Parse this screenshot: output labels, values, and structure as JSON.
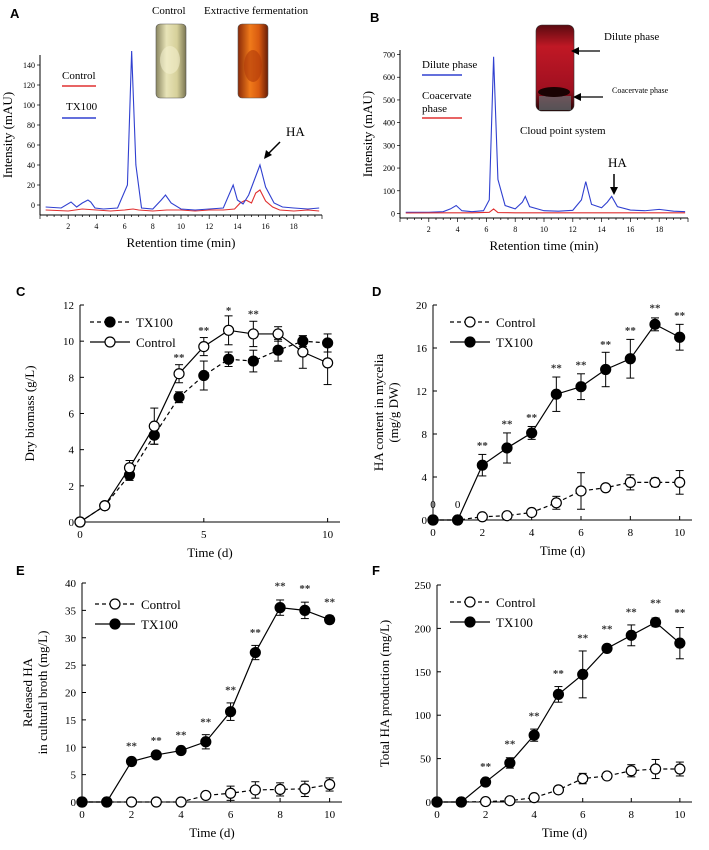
{
  "panels": {
    "A": {
      "letter": "A",
      "chart_data": {
        "type": "line",
        "xlabel": "Retention time (min)",
        "ylabel": "Intensity (mAU)",
        "xlim": [
          0,
          20
        ],
        "ylim": [
          -10,
          150
        ],
        "xticks": [
          2,
          4,
          6,
          8,
          10,
          12,
          14,
          16,
          18
        ],
        "yticks": [
          0,
          20,
          40,
          60,
          80,
          100,
          120,
          140
        ],
        "legend": [
          "Control",
          "TX100"
        ],
        "annotations": [
          "HA"
        ],
        "photo_labels": [
          "Control",
          "Extractive fermentation"
        ],
        "series": [
          {
            "name": "Control",
            "color": "#e03030",
            "x": [
              0.4,
              2,
              3,
              4,
              5,
              6,
              6.6,
              7,
              8,
              9,
              10,
              11,
              12,
              13,
              13.8,
              14.2,
              14.6,
              15.0,
              15.3,
              15.6,
              16,
              16.5,
              17,
              18,
              19,
              19.8
            ],
            "y": [
              -5,
              -6,
              -4,
              -5,
              -6,
              -5,
              -4,
              -5,
              -6,
              -5,
              -5,
              -6,
              -5,
              -5,
              -4,
              2,
              5,
              2,
              12,
              15,
              4,
              -2,
              -5,
              -6,
              -5,
              -6
            ]
          },
          {
            "name": "TX100",
            "color": "#3040d0",
            "x": [
              0.4,
              1.5,
              2.2,
              2.6,
              3.0,
              3.4,
              3.6,
              3.9,
              4.5,
              5.5,
              6.2,
              6.5,
              6.8,
              7.2,
              8,
              8.6,
              8.9,
              9.3,
              10,
              11,
              12,
              13,
              13.7,
              14.0,
              14.4,
              14.8,
              15.2,
              15.6,
              16.0,
              16.6,
              17.2,
              18,
              19,
              19.8
            ],
            "y": [
              -2,
              -3,
              3,
              -2,
              2,
              5,
              3,
              -3,
              -4,
              -3,
              20,
              154,
              40,
              -3,
              -4,
              5,
              10,
              2,
              -4,
              -5,
              -4,
              -3,
              20,
              5,
              1,
              10,
              25,
              40,
              18,
              2,
              -2,
              -3,
              -4,
              -3
            ]
          }
        ]
      }
    },
    "B": {
      "letter": "B",
      "chart_data": {
        "type": "line",
        "xlabel": "Retention time (min)",
        "ylabel": "Intensity (mAU)",
        "xlim": [
          0,
          20
        ],
        "ylim": [
          -20,
          720
        ],
        "xticks": [
          2,
          4,
          6,
          8,
          10,
          12,
          14,
          16,
          18
        ],
        "yticks": [
          0,
          100,
          200,
          300,
          400,
          500,
          600,
          700
        ],
        "legend": [
          "Dilute phase",
          "Coacervate phase"
        ],
        "annotations": [
          "HA",
          "Cloud point system",
          "Dilute phase",
          "Coacervate phase"
        ],
        "series": [
          {
            "name": "Dilute phase",
            "color": "#3040d0",
            "x": [
              0.4,
              2,
              3,
              3.5,
              3.9,
              4.3,
              5,
              5.8,
              6.2,
              6.5,
              6.8,
              7.3,
              8,
              8.5,
              8.7,
              9.0,
              10,
              11,
              12,
              12.6,
              12.9,
              13.3,
              14,
              14.4,
              14.7,
              15.1,
              16,
              17,
              18,
              19,
              19.8
            ],
            "y": [
              5,
              5,
              8,
              20,
              35,
              12,
              8,
              12,
              60,
              690,
              150,
              35,
              20,
              50,
              75,
              30,
              12,
              10,
              14,
              60,
              140,
              40,
              25,
              50,
              75,
              30,
              15,
              12,
              18,
              10,
              8
            ]
          },
          {
            "name": "Coacervate phase",
            "color": "#e03030",
            "x": [
              0.4,
              3,
              5,
              6.2,
              6.5,
              6.8,
              8,
              10,
              12,
              14,
              16,
              18,
              19.8
            ],
            "y": [
              2,
              3,
              3,
              5,
              20,
              4,
              3,
              3,
              3,
              3,
              3,
              3,
              3
            ]
          }
        ]
      }
    },
    "C": {
      "letter": "C",
      "chart_data": {
        "type": "line",
        "xlabel": "Time (d)",
        "ylabel": "Dry biomass (g/L)",
        "xlim": [
          0,
          10.5
        ],
        "ylim": [
          0,
          12
        ],
        "xticks": [
          0,
          5,
          10
        ],
        "yticks": [
          0,
          2,
          4,
          6,
          8,
          10,
          12
        ],
        "legend_order": [
          "TX100",
          "Control"
        ],
        "series": [
          {
            "name": "TX100",
            "marker": "filled",
            "line": "dashed",
            "x": [
              0,
              1,
              2,
              3,
              4,
              5,
              6,
              7,
              8,
              9,
              10
            ],
            "y": [
              0,
              0.9,
              2.6,
              4.8,
              6.9,
              8.1,
              9.0,
              8.9,
              9.5,
              10.0,
              9.9
            ],
            "err": [
              0,
              0.1,
              0.3,
              0.5,
              0.3,
              0.8,
              0.4,
              0.6,
              0.6,
              0.3,
              0.5
            ]
          },
          {
            "name": "Control",
            "marker": "open",
            "line": "solid",
            "x": [
              0,
              1,
              2,
              3,
              4,
              5,
              6,
              7,
              8,
              9,
              10
            ],
            "y": [
              0,
              0.9,
              3.0,
              5.3,
              8.2,
              9.7,
              10.6,
              10.4,
              10.4,
              9.4,
              8.8
            ],
            "err": [
              0,
              0.1,
              0.4,
              1.0,
              0.5,
              0.5,
              0.8,
              0.7,
              0.4,
              0.9,
              1.2
            ]
          }
        ],
        "significance": [
          {
            "x": 4,
            "y": 8.9,
            "label": "**"
          },
          {
            "x": 5,
            "y": 10.4,
            "label": "**"
          },
          {
            "x": 6,
            "y": 11.5,
            "label": "*"
          },
          {
            "x": 7,
            "y": 11.3,
            "label": "**"
          }
        ]
      }
    },
    "D": {
      "letter": "D",
      "chart_data": {
        "type": "line",
        "xlabel": "Time (d)",
        "ylabel": "HA content in mycelia (mg/g DW)",
        "ylabel_lines": [
          "HA content in mycelia",
          "(mg/g DW)"
        ],
        "xlim": [
          0,
          10.5
        ],
        "ylim": [
          0,
          20
        ],
        "xticks": [
          0,
          2,
          4,
          6,
          8,
          10
        ],
        "yticks": [
          0,
          4,
          8,
          12,
          16,
          20
        ],
        "legend_order": [
          "Control",
          "TX100"
        ],
        "series": [
          {
            "name": "Control",
            "marker": "open",
            "line": "dashed",
            "x": [
              0,
              1,
              2,
              3,
              4,
              5,
              6,
              7,
              8,
              9,
              10
            ],
            "y": [
              0,
              0,
              0.3,
              0.4,
              0.7,
              1.6,
              2.7,
              3.0,
              3.5,
              3.5,
              3.5
            ],
            "err": [
              0,
              0,
              0.1,
              0.2,
              0.3,
              0.6,
              1.7,
              0.3,
              0.7,
              0.4,
              1.1
            ]
          },
          {
            "name": "TX100",
            "marker": "filled",
            "line": "solid",
            "x": [
              0,
              1,
              2,
              3,
              4,
              5,
              6,
              7,
              8,
              9,
              10
            ],
            "y": [
              0,
              0,
              5.1,
              6.7,
              8.1,
              11.7,
              12.4,
              14.0,
              15.0,
              18.2,
              17.0
            ],
            "err": [
              0,
              0,
              1.0,
              1.4,
              0.6,
              1.6,
              1.2,
              1.6,
              1.8,
              0.6,
              1.2
            ]
          }
        ],
        "significance": [
          {
            "x": 2,
            "y": 6.6,
            "label": "**"
          },
          {
            "x": 3,
            "y": 8.6,
            "label": "**"
          },
          {
            "x": 4,
            "y": 9.2,
            "label": "**"
          },
          {
            "x": 5,
            "y": 13.8,
            "label": "**"
          },
          {
            "x": 6,
            "y": 14.1,
            "label": "**"
          },
          {
            "x": 7,
            "y": 16.0,
            "label": "**"
          },
          {
            "x": 8,
            "y": 17.3,
            "label": "**"
          },
          {
            "x": 9,
            "y": 19.4,
            "label": "**"
          },
          {
            "x": 10,
            "y": 18.7,
            "label": "**"
          }
        ],
        "zero_labels": [
          {
            "x": 0,
            "y": 1.5,
            "label": "0"
          },
          {
            "x": 1,
            "y": 1.5,
            "label": "0"
          }
        ]
      }
    },
    "E": {
      "letter": "E",
      "chart_data": {
        "type": "line",
        "xlabel": "Time (d)",
        "ylabel": "Released HA in cultural broth (mg/L)",
        "ylabel_lines": [
          "Released HA",
          "in cultural broth (mg/L)"
        ],
        "xlim": [
          0,
          10.5
        ],
        "ylim": [
          0,
          40
        ],
        "xticks": [
          0,
          2,
          4,
          6,
          8,
          10
        ],
        "yticks": [
          0,
          5,
          10,
          15,
          20,
          25,
          30,
          35,
          40
        ],
        "legend_order": [
          "Control",
          "TX100"
        ],
        "series": [
          {
            "name": "Control",
            "marker": "open",
            "line": "dashed",
            "x": [
              0,
              1,
              2,
              3,
              4,
              5,
              6,
              7,
              8,
              9,
              10
            ],
            "y": [
              0,
              0,
              0,
              0,
              0,
              1.2,
              1.6,
              2.2,
              2.3,
              2.4,
              3.2
            ],
            "err": [
              0,
              0,
              0,
              0,
              0,
              0.3,
              1.3,
              1.5,
              1.2,
              1.4,
              1.2
            ]
          },
          {
            "name": "TX100",
            "marker": "filled",
            "line": "solid",
            "x": [
              0,
              1,
              2,
              3,
              4,
              5,
              6,
              7,
              8,
              9,
              10
            ],
            "y": [
              0,
              0,
              7.4,
              8.6,
              9.4,
              11.0,
              16.5,
              27.3,
              35.5,
              35.0,
              33.3
            ],
            "err": [
              0,
              0,
              0.4,
              0.3,
              0.5,
              1.3,
              1.6,
              1.3,
              1.4,
              1.5,
              0.7
            ]
          }
        ],
        "significance": [
          {
            "x": 2,
            "y": 9.6,
            "label": "**"
          },
          {
            "x": 3,
            "y": 10.6,
            "label": "**"
          },
          {
            "x": 4,
            "y": 11.6,
            "label": "**"
          },
          {
            "x": 5,
            "y": 14.0,
            "label": "**"
          },
          {
            "x": 6,
            "y": 19.8,
            "label": "**"
          },
          {
            "x": 7,
            "y": 30.3,
            "label": "**"
          },
          {
            "x": 8,
            "y": 38.8,
            "label": "**"
          },
          {
            "x": 9,
            "y": 38.4,
            "label": "**"
          },
          {
            "x": 10,
            "y": 35.9,
            "label": "**"
          }
        ]
      }
    },
    "F": {
      "letter": "F",
      "chart_data": {
        "type": "line",
        "xlabel": "Time (d)",
        "ylabel": "Total HA production (mg/L)",
        "xlim": [
          0,
          10.5
        ],
        "ylim": [
          0,
          250
        ],
        "xticks": [
          0,
          2,
          4,
          6,
          8,
          10
        ],
        "yticks": [
          0,
          50,
          100,
          150,
          200,
          250
        ],
        "legend_order": [
          "Control",
          "TX100"
        ],
        "series": [
          {
            "name": "Control",
            "marker": "open",
            "line": "dashed",
            "x": [
              0,
              1,
              2,
              3,
              4,
              5,
              6,
              7,
              8,
              9,
              10
            ],
            "y": [
              0,
              0,
              0.5,
              1.5,
              5,
              14,
              27,
              30,
              36,
              38,
              38
            ],
            "err": [
              0,
              0,
              0.3,
              0.8,
              2,
              4,
              6,
              3,
              7,
              11,
              8
            ]
          },
          {
            "name": "TX100",
            "marker": "filled",
            "line": "solid",
            "x": [
              0,
              1,
              2,
              3,
              4,
              5,
              6,
              7,
              8,
              9,
              10
            ],
            "y": [
              0,
              0,
              23,
              45,
              77,
              124,
              147,
              177,
              192,
              207,
              183
            ],
            "err": [
              0,
              0,
              2,
              6,
              7,
              9,
              27,
              4,
              12,
              5,
              18
            ]
          }
        ],
        "significance": [
          {
            "x": 2,
            "y": 37,
            "label": "**"
          },
          {
            "x": 3,
            "y": 63,
            "label": "**"
          },
          {
            "x": 4,
            "y": 95,
            "label": "**"
          },
          {
            "x": 5,
            "y": 144,
            "label": "**"
          },
          {
            "x": 6,
            "y": 185,
            "label": "**"
          },
          {
            "x": 7,
            "y": 195,
            "label": "**"
          },
          {
            "x": 8,
            "y": 215,
            "label": "**"
          },
          {
            "x": 9,
            "y": 225,
            "label": "**"
          },
          {
            "x": 10,
            "y": 214,
            "label": "**"
          }
        ]
      }
    }
  }
}
